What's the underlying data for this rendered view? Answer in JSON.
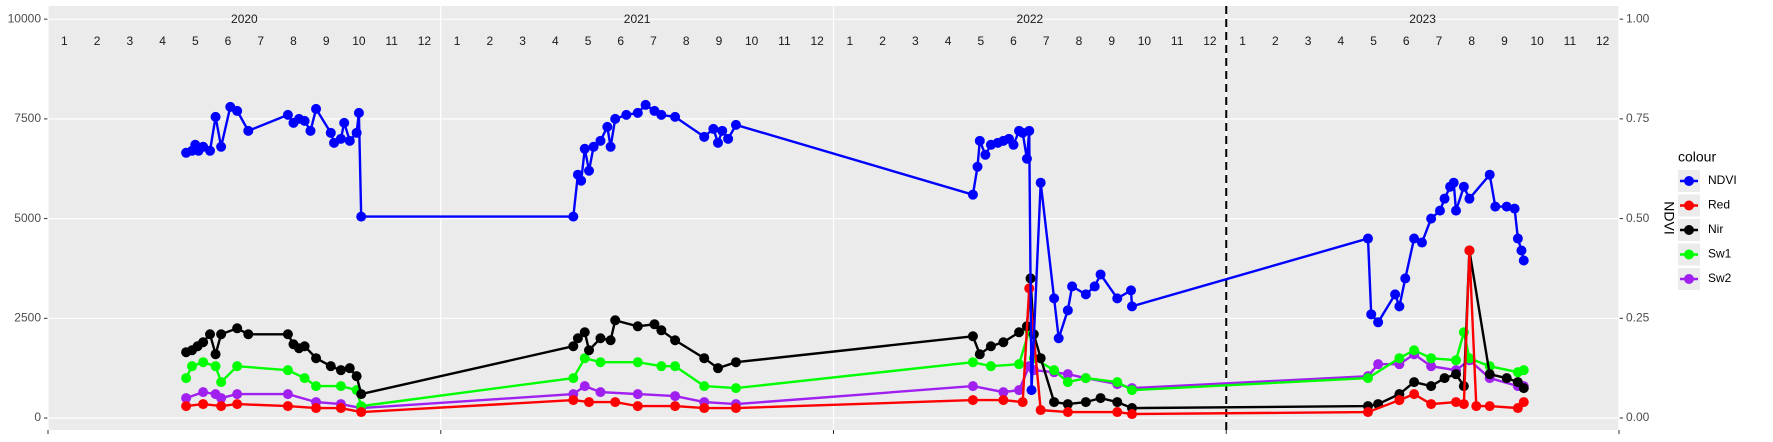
{
  "chart_data": {
    "type": "line",
    "x_label_note_free": null,
    "xlim": [
      0,
      48
    ],
    "x_breaks": [
      0,
      12,
      24,
      36,
      48
    ],
    "vline": 36,
    "year_labels": [
      {
        "value": 6,
        "label": "2020"
      },
      {
        "value": 18,
        "label": "2021"
      },
      {
        "value": 30,
        "label": "2022"
      },
      {
        "value": 42,
        "label": "2023"
      }
    ],
    "month_labels": [
      {
        "value": 0.5,
        "label": "1"
      },
      {
        "value": 1.5,
        "label": "2"
      },
      {
        "value": 2.5,
        "label": "3"
      },
      {
        "value": 3.5,
        "label": "4"
      },
      {
        "value": 4.5,
        "label": "5"
      },
      {
        "value": 5.5,
        "label": "6"
      },
      {
        "value": 6.5,
        "label": "7"
      },
      {
        "value": 7.5,
        "label": "8"
      },
      {
        "value": 8.5,
        "label": "9"
      },
      {
        "value": 9.5,
        "label": "10"
      },
      {
        "value": 10.5,
        "label": "11"
      },
      {
        "value": 11.5,
        "label": "12"
      },
      {
        "value": 12.5,
        "label": "1"
      },
      {
        "value": 13.5,
        "label": "2"
      },
      {
        "value": 14.5,
        "label": "3"
      },
      {
        "value": 15.5,
        "label": "4"
      },
      {
        "value": 16.5,
        "label": "5"
      },
      {
        "value": 17.5,
        "label": "6"
      },
      {
        "value": 18.5,
        "label": "7"
      },
      {
        "value": 19.5,
        "label": "8"
      },
      {
        "value": 20.5,
        "label": "9"
      },
      {
        "value": 21.5,
        "label": "10"
      },
      {
        "value": 22.5,
        "label": "11"
      },
      {
        "value": 23.5,
        "label": "12"
      },
      {
        "value": 24.5,
        "label": "1"
      },
      {
        "value": 25.5,
        "label": "2"
      },
      {
        "value": 26.5,
        "label": "3"
      },
      {
        "value": 27.5,
        "label": "4"
      },
      {
        "value": 28.5,
        "label": "5"
      },
      {
        "value": 29.5,
        "label": "6"
      },
      {
        "value": 30.5,
        "label": "7"
      },
      {
        "value": 31.5,
        "label": "8"
      },
      {
        "value": 32.5,
        "label": "9"
      },
      {
        "value": 33.5,
        "label": "10"
      },
      {
        "value": 34.5,
        "label": "11"
      },
      {
        "value": 35.5,
        "label": "12"
      },
      {
        "value": 36.5,
        "label": "1"
      },
      {
        "value": 37.5,
        "label": "2"
      },
      {
        "value": 38.5,
        "label": "3"
      },
      {
        "value": 39.5,
        "label": "4"
      },
      {
        "value": 40.5,
        "label": "5"
      },
      {
        "value": 41.5,
        "label": "6"
      },
      {
        "value": 42.5,
        "label": "7"
      },
      {
        "value": 43.5,
        "label": "8"
      },
      {
        "value": 44.5,
        "label": "9"
      },
      {
        "value": 45.5,
        "label": "10"
      },
      {
        "value": 46.5,
        "label": "11"
      },
      {
        "value": 47.5,
        "label": "12"
      }
    ],
    "ylim": [
      -300,
      10330
    ],
    "yticks": [
      0,
      2500,
      5000,
      7500,
      10000
    ],
    "y2lim": [
      -0.03,
      1.033
    ],
    "y2ticks": [
      {
        "value": 0,
        "label": "0.00"
      },
      {
        "value": 0.25,
        "label": "0.25"
      },
      {
        "value": 0.5,
        "label": "0.50"
      },
      {
        "value": 0.75,
        "label": "0.75"
      },
      {
        "value": 1,
        "label": "1.00"
      }
    ],
    "y2_label": "NDVI",
    "legend_title": "colour",
    "grid": true,
    "series": [
      {
        "name": "NDVI",
        "color": "#0000ff",
        "axis": "y2",
        "x": [
          4.22,
          4.4,
          4.5,
          4.6,
          4.74,
          4.95,
          5.12,
          5.29,
          5.57,
          5.78,
          6.12,
          7.33,
          7.5,
          7.67,
          7.84,
          8.02,
          8.19,
          8.64,
          8.74,
          8.95,
          9.05,
          9.22,
          9.43,
          9.5,
          9.57,
          16.05,
          16.19,
          16.29,
          16.4,
          16.53,
          16.67,
          16.88,
          17.09,
          17.19,
          17.33,
          17.67,
          18.02,
          18.26,
          18.53,
          18.74,
          19.16,
          20.05,
          20.33,
          20.47,
          20.6,
          20.78,
          21.02,
          28.26,
          28.4,
          28.47,
          28.64,
          28.81,
          29.02,
          29.19,
          29.36,
          29.5,
          29.67,
          29.78,
          29.91,
          29.98,
          30.05,
          30.33,
          30.74,
          30.88,
          31.16,
          31.29,
          31.71,
          31.98,
          32.16,
          32.67,
          33.09,
          33.12,
          40.33,
          40.43,
          40.64,
          41.16,
          41.29,
          41.47,
          41.74,
          41.98,
          42.26,
          42.53,
          42.67,
          42.84,
          42.95,
          43.02,
          43.26,
          43.43,
          44.05,
          44.22,
          44.57,
          44.81,
          44.91,
          45.02,
          45.09
        ],
        "values": [
          0.665,
          0.67,
          0.685,
          0.67,
          0.68,
          0.67,
          0.755,
          0.68,
          0.78,
          0.77,
          0.72,
          0.76,
          0.74,
          0.75,
          0.745,
          0.72,
          0.775,
          0.715,
          0.69,
          0.7,
          0.74,
          0.695,
          0.715,
          0.765,
          0.505,
          0.505,
          0.61,
          0.595,
          0.675,
          0.62,
          0.68,
          0.695,
          0.73,
          0.68,
          0.75,
          0.76,
          0.765,
          0.785,
          0.77,
          0.76,
          0.755,
          0.705,
          0.725,
          0.69,
          0.72,
          0.7,
          0.735,
          0.56,
          0.63,
          0.695,
          0.66,
          0.685,
          0.69,
          0.695,
          0.7,
          0.685,
          0.72,
          0.715,
          0.65,
          0.72,
          0.07,
          0.59,
          0.3,
          0.2,
          0.27,
          0.33,
          0.31,
          0.33,
          0.36,
          0.3,
          0.32,
          0.28,
          0.45,
          0.26,
          0.24,
          0.31,
          0.28,
          0.35,
          0.45,
          0.44,
          0.5,
          0.52,
          0.55,
          0.58,
          0.59,
          0.52,
          0.58,
          0.55,
          0.61,
          0.53,
          0.53,
          0.525,
          0.45,
          0.42,
          0.395
        ]
      },
      {
        "name": "Red",
        "color": "#ff0000",
        "x": [
          4.22,
          4.74,
          5.29,
          5.78,
          7.33,
          8.19,
          8.95,
          9.57,
          16.05,
          16.53,
          17.33,
          18.02,
          19.16,
          20.05,
          21.02,
          28.26,
          29.19,
          29.78,
          29.98,
          30.33,
          31.16,
          32.67,
          33.12,
          40.33,
          41.29,
          41.74,
          42.26,
          43.02,
          43.26,
          43.43,
          43.64,
          44.05,
          44.91,
          45.09
        ],
        "values": [
          300,
          350,
          300,
          350,
          300,
          250,
          250,
          150,
          450,
          400,
          400,
          300,
          300,
          250,
          250,
          450,
          450,
          400,
          3250,
          200,
          150,
          150,
          100,
          150,
          450,
          600,
          350,
          400,
          350,
          4200,
          300,
          300,
          250,
          400
        ]
      },
      {
        "name": "Nir",
        "color": "#000000",
        "x": [
          4.22,
          4.4,
          4.57,
          4.74,
          4.95,
          5.12,
          5.29,
          5.78,
          6.12,
          7.33,
          7.5,
          7.67,
          7.84,
          8.19,
          8.64,
          8.95,
          9.22,
          9.43,
          9.57,
          16.05,
          16.19,
          16.4,
          16.53,
          16.88,
          17.19,
          17.33,
          18.02,
          18.53,
          18.74,
          19.16,
          20.05,
          20.47,
          21.02,
          28.26,
          28.47,
          28.81,
          29.19,
          29.67,
          29.91,
          30.02,
          30.12,
          30.33,
          30.74,
          31.16,
          31.71,
          32.16,
          32.67,
          33.12,
          40.33,
          40.64,
          41.29,
          41.74,
          42.26,
          42.67,
          43.02,
          43.26,
          43.43,
          44.05,
          44.57,
          44.91,
          45.09
        ],
        "values": [
          1650,
          1700,
          1800,
          1900,
          2100,
          1600,
          2100,
          2250,
          2100,
          2100,
          1850,
          1750,
          1800,
          1500,
          1300,
          1200,
          1250,
          1050,
          600,
          1800,
          2000,
          2150,
          1700,
          2000,
          1950,
          2450,
          2300,
          2350,
          2200,
          1950,
          1500,
          1250,
          1400,
          2050,
          1600,
          1800,
          1900,
          2150,
          2300,
          3500,
          2100,
          1500,
          400,
          350,
          400,
          500,
          400,
          250,
          300,
          350,
          600,
          900,
          800,
          1000,
          1100,
          800,
          4200,
          1100,
          1000,
          900,
          750
        ]
      },
      {
        "name": "Sw1",
        "color": "#00ff00",
        "x": [
          4.22,
          4.4,
          4.74,
          5.12,
          5.29,
          5.78,
          7.33,
          7.84,
          8.19,
          8.95,
          9.43,
          9.57,
          16.05,
          16.4,
          16.88,
          18.02,
          18.74,
          19.16,
          20.05,
          21.02,
          28.26,
          28.81,
          29.67,
          29.98,
          30.12,
          30.74,
          31.16,
          31.71,
          32.67,
          33.12,
          40.33,
          41.29,
          41.74,
          42.26,
          43.02,
          43.26,
          43.43,
          44.05,
          44.91,
          45.09
        ],
        "values": [
          1000,
          1300,
          1400,
          1300,
          900,
          1300,
          1200,
          1000,
          800,
          800,
          700,
          300,
          1000,
          1500,
          1400,
          1400,
          1300,
          1300,
          800,
          750,
          1400,
          1300,
          1350,
          2200,
          1500,
          1200,
          900,
          1000,
          900,
          700,
          1000,
          1500,
          1700,
          1500,
          1450,
          2150,
          1500,
          1300,
          1150,
          1200
        ]
      },
      {
        "name": "Sw2",
        "color": "#a020f0",
        "x": [
          4.22,
          4.74,
          5.12,
          5.29,
          5.78,
          7.33,
          8.19,
          8.95,
          9.57,
          16.05,
          16.4,
          16.88,
          18.02,
          19.16,
          20.05,
          21.02,
          28.26,
          29.19,
          29.67,
          29.98,
          30.12,
          30.74,
          31.16,
          31.71,
          32.67,
          33.12,
          40.33,
          40.64,
          41.29,
          41.74,
          42.26,
          43.02,
          43.43,
          44.05,
          44.91,
          45.09
        ],
        "values": [
          500,
          650,
          600,
          500,
          600,
          600,
          400,
          350,
          250,
          600,
          800,
          650,
          600,
          550,
          400,
          350,
          800,
          650,
          700,
          1300,
          1200,
          1150,
          1100,
          1000,
          850,
          750,
          1050,
          1350,
          1350,
          1600,
          1300,
          1200,
          1450,
          1000,
          800,
          800
        ]
      }
    ]
  }
}
